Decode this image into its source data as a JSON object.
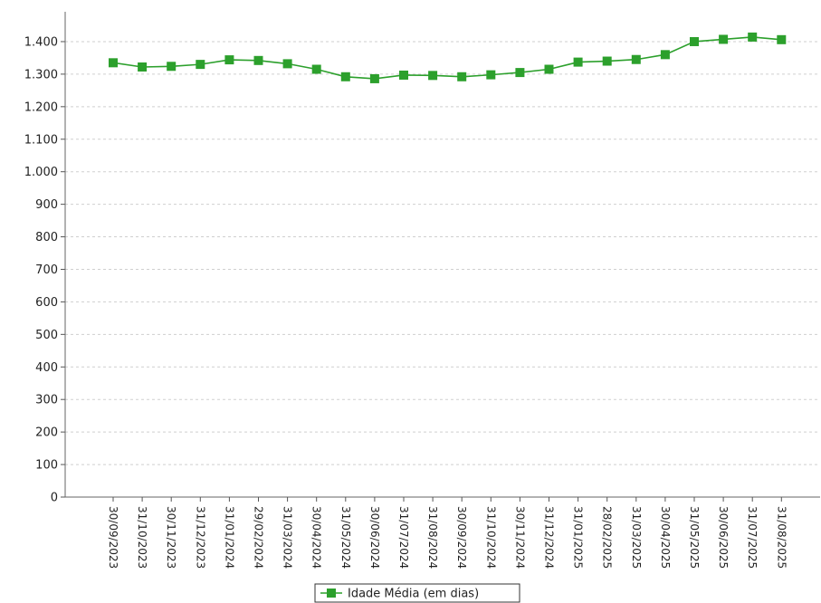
{
  "chart_data": {
    "type": "line",
    "title": "",
    "xlabel": "",
    "ylabel": "",
    "ylim": [
      0,
      1450
    ],
    "yticks": [
      0,
      100,
      200,
      300,
      400,
      500,
      600,
      700,
      800,
      900,
      1000,
      1100,
      1200,
      1300,
      1400
    ],
    "ytick_labels": [
      "0",
      "100",
      "200",
      "300",
      "400",
      "500",
      "600",
      "700",
      "800",
      "900",
      "1.000",
      "1.100",
      "1.200",
      "1.300",
      "1.400"
    ],
    "grid": true,
    "legend_position": "bottom-center",
    "categories": [
      "30/09/2023",
      "31/10/2023",
      "30/11/2023",
      "31/12/2023",
      "31/01/2024",
      "29/02/2024",
      "31/03/2024",
      "30/04/2024",
      "31/05/2024",
      "30/06/2024",
      "31/07/2024",
      "31/08/2024",
      "30/09/2024",
      "31/10/2024",
      "30/11/2024",
      "31/12/2024",
      "31/01/2025",
      "28/02/2025",
      "31/03/2025",
      "30/04/2025",
      "31/05/2025",
      "30/06/2025",
      "31/07/2025",
      "31/08/2025"
    ],
    "series": [
      {
        "name": "Idade Média (em dias)",
        "color": "#2ca02c",
        "marker": "square",
        "values": [
          1335,
          1322,
          1324,
          1330,
          1344,
          1342,
          1332,
          1315,
          1292,
          1286,
          1297,
          1296,
          1292,
          1298,
          1305,
          1315,
          1337,
          1340,
          1345,
          1360,
          1400,
          1407,
          1414,
          1406
        ]
      }
    ]
  }
}
